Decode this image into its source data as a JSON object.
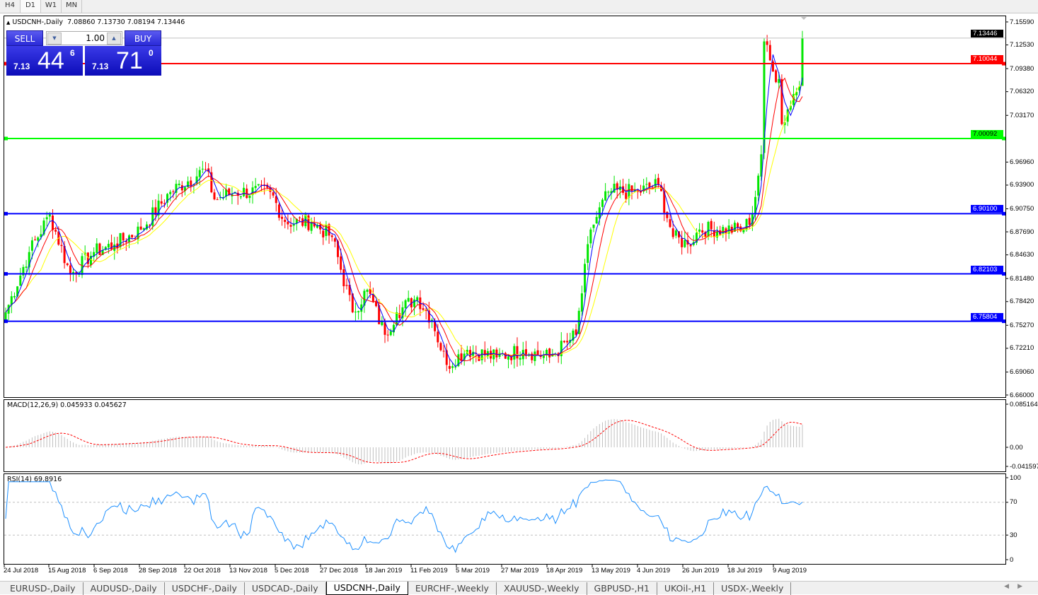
{
  "timeframes": [
    "H4",
    "D1",
    "W1",
    "MN"
  ],
  "active_timeframe": "D1",
  "chart": {
    "symbol_title": "USDCNH-,Daily",
    "ohlc": "7.08860 7.13730 7.08194 7.13446",
    "current_price": "7.13446"
  },
  "trade_panel": {
    "sell_label": "SELL",
    "buy_label": "BUY",
    "lot": "1.00",
    "sell_prefix": "7.13",
    "sell_big": "44",
    "sell_sup": "6",
    "buy_prefix": "7.13",
    "buy_big": "71",
    "buy_sup": "0"
  },
  "price_axis": [
    "7.15590",
    "7.12530",
    "7.09380",
    "7.06320",
    "7.03170",
    "6.96960",
    "6.93900",
    "6.90750",
    "6.87690",
    "6.84630",
    "6.81480",
    "6.78420",
    "6.75270",
    "6.72210",
    "6.69060",
    "6.66000"
  ],
  "horizontal_lines": [
    {
      "price": "7.10044",
      "color": "#ff0000"
    },
    {
      "price": "7.00092",
      "color": "#00ff00"
    },
    {
      "price": "6.90100",
      "color": "#0000ff"
    },
    {
      "price": "6.82103",
      "color": "#0000ff"
    },
    {
      "price": "6.75804",
      "color": "#0000ff"
    }
  ],
  "macd": {
    "label": "MACD(12,26,9) 0.045933 0.045627",
    "axis": [
      "0.085164",
      "0.00",
      "-0.041597"
    ]
  },
  "rsi": {
    "label": "RSI(14) 69.8916",
    "axis": [
      "100",
      "70",
      "30",
      "0"
    ]
  },
  "date_axis": [
    "24 Jul 2018",
    "15 Aug 2018",
    "6 Sep 2018",
    "28 Sep 2018",
    "22 Oct 2018",
    "13 Nov 2018",
    "5 Dec 2018",
    "27 Dec 2018",
    "18 Jan 2019",
    "11 Feb 2019",
    "5 Mar 2019",
    "27 Mar 2019",
    "18 Apr 2019",
    "13 May 2019",
    "4 Jun 2019",
    "26 Jun 2019",
    "18 Jul 2019",
    "9 Aug 2019"
  ],
  "tabs": [
    "EURUSD-,Daily",
    "AUDUSD-,Daily",
    "USDCHF-,Daily",
    "USDCAD-,Daily",
    "USDCNH-,Daily",
    "EURCHF-,Weekly",
    "XAUUSD-,Weekly",
    "GBPUSD-,H1",
    "UKOil-,H1",
    "USDX-,Weekly"
  ],
  "active_tab": "USDCNH-,Daily",
  "colors": {
    "bull": "#00e600",
    "bear": "#ff0000",
    "ma_fast": "#0000ff",
    "ma_mid": "#ff0000",
    "ma_slow": "#ffff00",
    "rsi": "#1e90ff"
  },
  "chart_data": {
    "type": "candlestick",
    "price_range": [
      6.66,
      7.1559
    ],
    "close_waypoints": [
      {
        "bar": 0,
        "close": 6.77
      },
      {
        "bar": 8,
        "close": 6.85
      },
      {
        "bar": 15,
        "close": 6.9
      },
      {
        "bar": 22,
        "close": 6.82
      },
      {
        "bar": 30,
        "close": 6.85
      },
      {
        "bar": 37,
        "close": 6.86
      },
      {
        "bar": 46,
        "close": 6.88
      },
      {
        "bar": 56,
        "close": 6.93
      },
      {
        "bar": 68,
        "close": 6.96
      },
      {
        "bar": 71,
        "close": 6.92
      },
      {
        "bar": 78,
        "close": 6.93
      },
      {
        "bar": 90,
        "close": 6.93
      },
      {
        "bar": 95,
        "close": 6.89
      },
      {
        "bar": 104,
        "close": 6.89
      },
      {
        "bar": 111,
        "close": 6.87
      },
      {
        "bar": 118,
        "close": 6.77
      },
      {
        "bar": 123,
        "close": 6.8
      },
      {
        "bar": 129,
        "close": 6.74
      },
      {
        "bar": 133,
        "close": 6.77
      },
      {
        "bar": 140,
        "close": 6.79
      },
      {
        "bar": 145,
        "close": 6.76
      },
      {
        "bar": 150,
        "close": 6.7
      },
      {
        "bar": 157,
        "close": 6.72
      },
      {
        "bar": 167,
        "close": 6.71
      },
      {
        "bar": 176,
        "close": 6.72
      },
      {
        "bar": 185,
        "close": 6.71
      },
      {
        "bar": 191,
        "close": 6.73
      },
      {
        "bar": 194,
        "close": 6.74
      },
      {
        "bar": 199,
        "close": 6.88
      },
      {
        "bar": 205,
        "close": 6.93
      },
      {
        "bar": 215,
        "close": 6.93
      },
      {
        "bar": 222,
        "close": 6.94
      },
      {
        "bar": 227,
        "close": 6.87
      },
      {
        "bar": 232,
        "close": 6.86
      },
      {
        "bar": 236,
        "close": 6.88
      },
      {
        "bar": 251,
        "close": 6.88
      },
      {
        "bar": 254,
        "close": 6.9
      },
      {
        "bar": 257,
        "close": 6.98
      },
      {
        "bar": 258,
        "close": 7.13
      },
      {
        "bar": 261,
        "close": 7.09
      },
      {
        "bar": 263,
        "close": 7.08
      },
      {
        "bar": 264,
        "close": 7.02
      },
      {
        "bar": 268,
        "close": 7.06
      },
      {
        "bar": 270,
        "close": 7.07
      },
      {
        "bar": 271,
        "close": 7.13446
      }
    ]
  }
}
